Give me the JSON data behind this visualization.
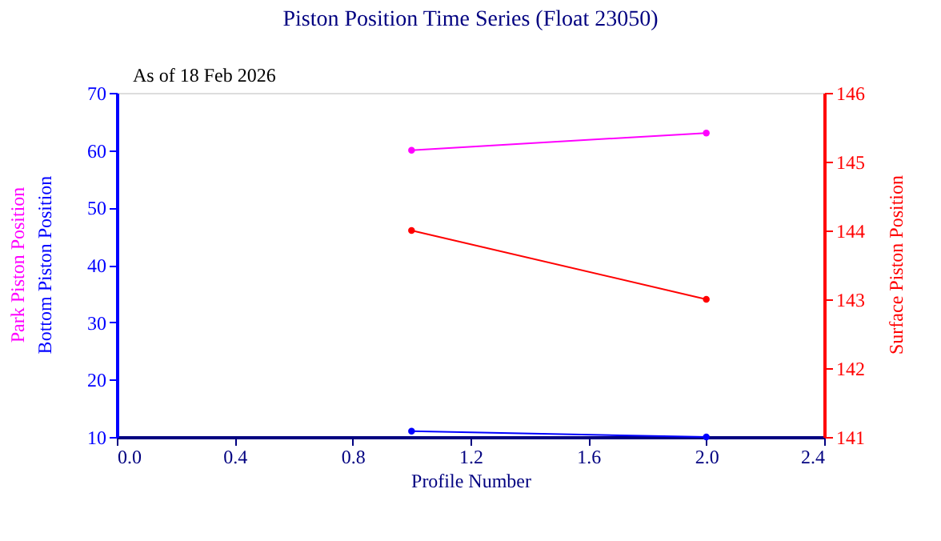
{
  "chart_data": {
    "type": "line",
    "title": "Piston Position Time Series (Float 23050)",
    "xlabel": "Profile Number",
    "annotations": [
      "As of 18 Feb 2026"
    ],
    "x": [
      1,
      2
    ],
    "series": [
      {
        "name": "Park Piston Position",
        "color": "#ff00ff",
        "values": [
          60,
          63
        ]
      },
      {
        "name": "Bottom Piston Position",
        "color": "#0000ff",
        "values": [
          11,
          10
        ]
      },
      {
        "name": "Surface Piston Position",
        "color": "#ff0000",
        "values": [
          144,
          143
        ],
        "axis": "y2"
      }
    ],
    "xlim": [
      0.0,
      2.4
    ],
    "xticks": [
      {
        "value": 0,
        "label": "0.0"
      },
      0.4,
      0.8,
      1.2,
      1.6,
      {
        "value": 2,
        "label": "2.0"
      },
      2.4
    ],
    "ylim": [
      10,
      70
    ],
    "yticks": [
      10,
      20,
      30,
      40,
      50,
      60,
      70
    ],
    "y2lim": [
      141,
      146
    ],
    "y2ticks": [
      141,
      142,
      143,
      144,
      145,
      146
    ],
    "grid": false,
    "marker": "circle",
    "line_style": "solid"
  }
}
